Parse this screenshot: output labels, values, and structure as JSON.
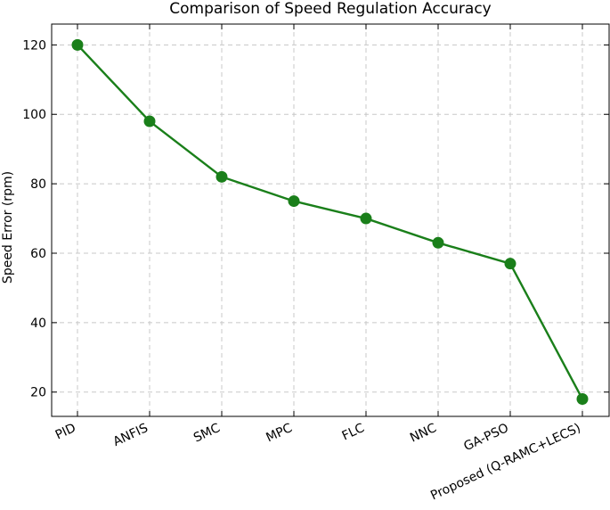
{
  "chart_data": {
    "type": "line",
    "title": "Comparison of Speed Regulation Accuracy",
    "xlabel": "",
    "ylabel": "Speed Error (rpm)",
    "categories": [
      "PID",
      "ANFIS",
      "SMC",
      "MPC",
      "FLC",
      "NNC",
      "GA-PSO",
      "Proposed (Q-RAMC+LECS)"
    ],
    "series": [
      {
        "values": [
          120,
          98,
          82,
          75,
          70,
          63,
          57,
          18
        ]
      }
    ],
    "ylim": [
      13,
      126
    ],
    "yticks": [
      20,
      40,
      60,
      80,
      100,
      120
    ],
    "grid": true,
    "legend": "none",
    "colors": {
      "line": "#1a7f1a",
      "marker": "#1a7f1a",
      "grid": "#c8c8c8",
      "frame": "#000000"
    }
  }
}
